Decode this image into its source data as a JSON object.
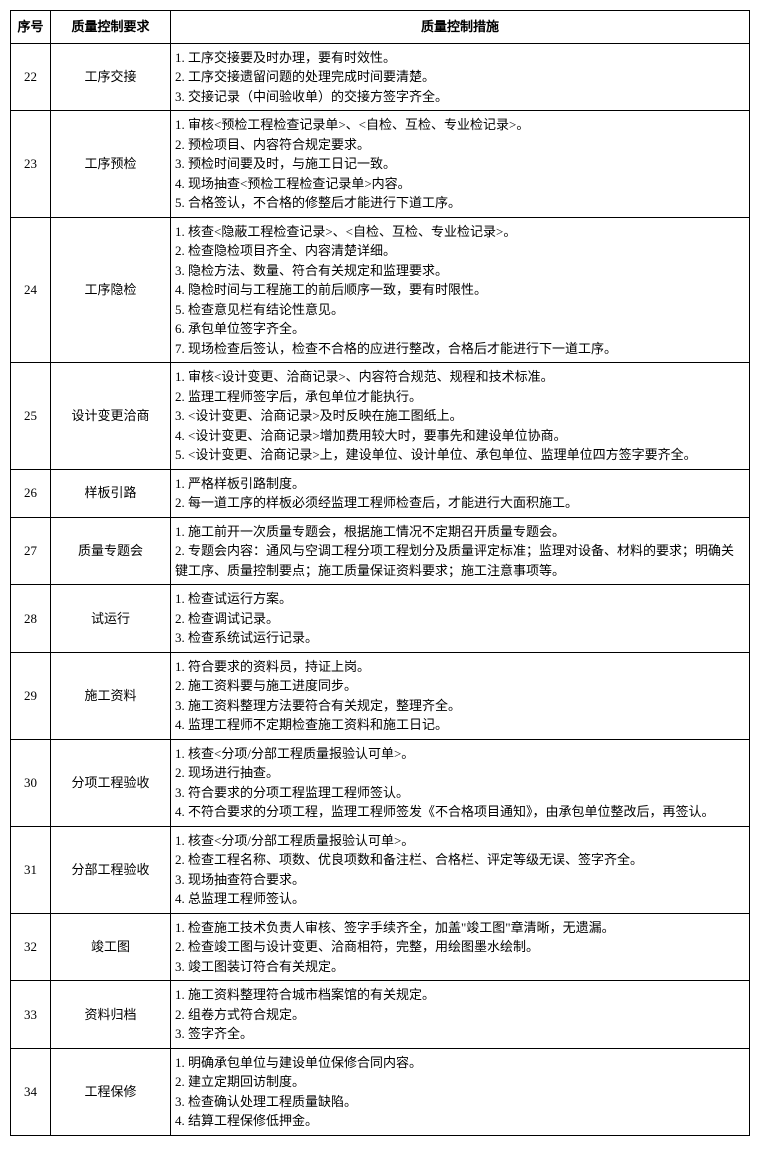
{
  "headers": {
    "seq": "序号",
    "requirement": "质量控制要求",
    "measure": "质量控制措施"
  },
  "rows": [
    {
      "seq": "22",
      "requirement": "工序交接",
      "measures": [
        "1. 工序交接要及时办理，要有时效性。",
        "2. 工序交接遗留问题的处理完成时间要清楚。",
        "3. 交接记录（中间验收单）的交接方签字齐全。"
      ]
    },
    {
      "seq": "23",
      "requirement": "工序预检",
      "measures": [
        "1. 审核<预检工程检查记录单>、<自检、互检、专业检记录>。",
        "2. 预检项目、内容符合规定要求。",
        "3. 预检时间要及时，与施工日记一致。",
        "4. 现场抽查<预检工程检查记录单>内容。",
        "5. 合格签认，不合格的修整后才能进行下道工序。"
      ]
    },
    {
      "seq": "24",
      "requirement": "工序隐检",
      "measures": [
        "1. 核查<隐蔽工程检查记录>、<自检、互检、专业检记录>。",
        "2. 检查隐检项目齐全、内容清楚详细。",
        "3. 隐检方法、数量、符合有关规定和监理要求。",
        "4. 隐检时间与工程施工的前后顺序一致，要有时限性。",
        "5. 检查意见栏有结论性意见。",
        "6. 承包单位签字齐全。",
        "7. 现场检查后签认，检查不合格的应进行整改，合格后才能进行下一道工序。"
      ]
    },
    {
      "seq": "25",
      "requirement": "设计变更洽商",
      "measures": [
        "1. 审核<设计变更、洽商记录>、内容符合规范、规程和技术标准。",
        "2. 监理工程师签字后，承包单位才能执行。",
        "3. <设计变更、洽商记录>及时反映在施工图纸上。",
        "4. <设计变更、洽商记录>增加费用较大时，要事先和建设单位协商。",
        "5. <设计变更、洽商记录>上，建设单位、设计单位、承包单位、监理单位四方签字要齐全。"
      ]
    },
    {
      "seq": "26",
      "requirement": "样板引路",
      "measures": [
        "1. 严格样板引路制度。",
        "2. 每一道工序的样板必须经监理工程师检查后，才能进行大面积施工。"
      ]
    },
    {
      "seq": "27",
      "requirement": "质量专题会",
      "measures": [
        "1. 施工前开一次质量专题会，根据施工情况不定期召开质量专题会。",
        "2. 专题会内容：通风与空调工程分项工程划分及质量评定标准；监理对设备、材料的要求；明确关键工序、质量控制要点；施工质量保证资料要求；施工注意事项等。"
      ]
    },
    {
      "seq": "28",
      "requirement": "试运行",
      "measures": [
        "1. 检查试运行方案。",
        "2. 检查调试记录。",
        "3. 检查系统试运行记录。"
      ]
    },
    {
      "seq": "29",
      "requirement": "施工资料",
      "measures": [
        "1. 符合要求的资料员，持证上岗。",
        "2. 施工资料要与施工进度同步。",
        "3. 施工资料整理方法要符合有关规定，整理齐全。",
        "4. 监理工程师不定期检查施工资料和施工日记。"
      ]
    },
    {
      "seq": "30",
      "requirement": "分项工程验收",
      "measures": [
        "1. 核查<分项/分部工程质量报验认可单>。",
        "2. 现场进行抽查。",
        "3. 符合要求的分项工程监理工程师签认。",
        "4. 不符合要求的分项工程，监理工程师签发《不合格项目通知》，由承包单位整改后，再签认。"
      ]
    },
    {
      "seq": "31",
      "requirement": "分部工程验收",
      "measures": [
        "1. 核查<分项/分部工程质量报验认可单>。",
        "2. 检查工程名称、项数、优良项数和备注栏、合格栏、评定等级无误、签字齐全。",
        "3. 现场抽查符合要求。",
        "4. 总监理工程师签认。"
      ]
    },
    {
      "seq": "32",
      "requirement": "竣工图",
      "measures": [
        "1. 检查施工技术负责人审核、签字手续齐全，加盖\"竣工图\"章清晰，无遗漏。",
        "2. 检查竣工图与设计变更、洽商相符，完整，用绘图墨水绘制。",
        "3. 竣工图装订符合有关规定。"
      ]
    },
    {
      "seq": "33",
      "requirement": "资料归档",
      "measures": [
        "1. 施工资料整理符合城市档案馆的有关规定。",
        "2. 组卷方式符合规定。",
        "3. 签字齐全。"
      ]
    },
    {
      "seq": "34",
      "requirement": "工程保修",
      "measures": [
        "1. 明确承包单位与建设单位保修合同内容。",
        "2. 建立定期回访制度。",
        "3. 检查确认处理工程质量缺陷。",
        "4. 结算工程保修低押金。"
      ]
    }
  ]
}
